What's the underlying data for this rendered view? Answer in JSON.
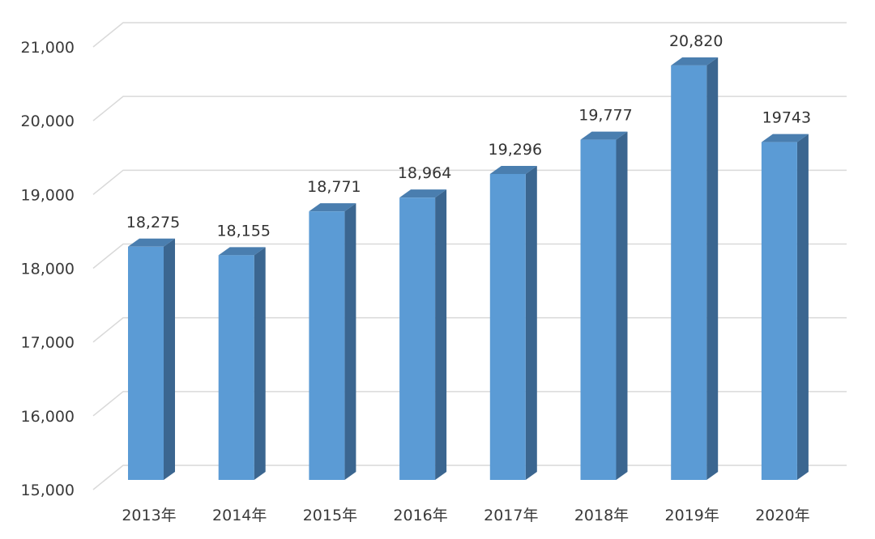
{
  "chart_data": {
    "type": "bar",
    "title": "",
    "xlabel": "",
    "ylabel": "",
    "categories": [
      "2013年",
      "2014年",
      "2015年",
      "2016年",
      "2017年",
      "2018年",
      "2019年",
      "2020年"
    ],
    "values": [
      18275,
      18155,
      18771,
      18964,
      19296,
      19777,
      20820,
      19743
    ],
    "data_labels": [
      "18,275",
      "18,155",
      "18,771",
      "18,964",
      "19,296",
      "19,777",
      "20,820",
      "19743"
    ],
    "ylim": [
      15000,
      21000
    ],
    "y_ticks": [
      15000,
      16000,
      17000,
      18000,
      19000,
      20000,
      21000
    ],
    "y_tick_labels": [
      "15,000",
      "16,000",
      "17,000",
      "18,000",
      "19,000",
      "20,000",
      "21,000"
    ],
    "grid": true,
    "legend": "none",
    "style": "3d-column",
    "colors": {
      "bar_front": "#5b9bd5",
      "bar_side": "#3b6690",
      "bar_top": "#4a7eaf",
      "grid": "#d9d9d9"
    }
  }
}
